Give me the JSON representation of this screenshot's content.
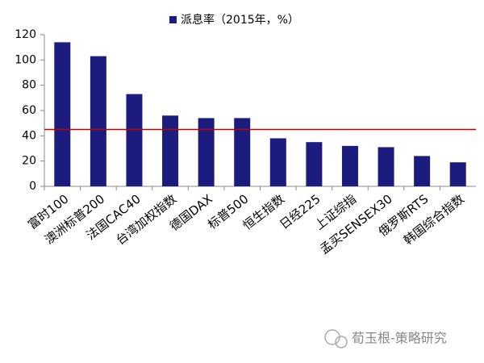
{
  "chart_data": {
    "type": "bar",
    "legend_label": "派息率（2015年，%）",
    "categories": [
      "富时100",
      "澳洲标普200",
      "法国CAC40",
      "台湾加权指数",
      "德国DAX",
      "标普500",
      "恒生指数",
      "日经225",
      "上证综指",
      "孟买SENSEX30",
      "俄罗斯RTS",
      "韩国综合指数"
    ],
    "values": [
      114,
      103,
      73,
      56,
      54,
      54,
      38,
      35,
      32,
      31,
      24,
      19
    ],
    "color": "#1c1c7e",
    "reference_line": {
      "value": 45,
      "color": "#c00000"
    },
    "ylim": [
      0,
      120
    ],
    "yticks": [
      0,
      20,
      40,
      60,
      80,
      100,
      120
    ],
    "grid": false
  },
  "watermark": "荀玉根-策略研究"
}
